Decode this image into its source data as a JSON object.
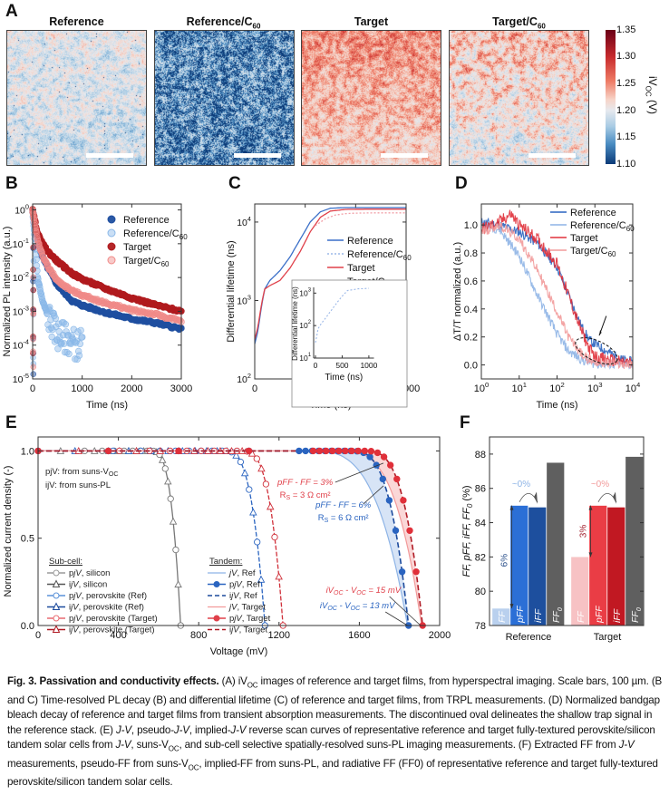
{
  "figure": {
    "panels": {
      "A": "A",
      "B": "B",
      "C": "C",
      "D": "D",
      "E": "E",
      "F": "F"
    },
    "panelA": {
      "images": [
        {
          "title": "Reference",
          "title_sub": ""
        },
        {
          "title": "Reference/C",
          "title_sub": "60"
        },
        {
          "title": "Target",
          "title_sub": ""
        },
        {
          "title": "Target/C",
          "title_sub": "60"
        }
      ],
      "colorbar": {
        "label": "iV",
        "label_sub": "OC",
        "label_unit": " (V)",
        "ticks": [
          "1.35",
          "1.30",
          "1.25",
          "1.20",
          "1.15",
          "1.10"
        ],
        "range": [
          1.1,
          1.35
        ]
      }
    },
    "caption": {
      "fig_label": "Fig. 3. Passivation and conductivity effects.",
      "text_A_pre": " (A) iV",
      "text_A_sub": "OC",
      "text_A_post": " images of reference and target films, from hyperspectral imaging. Scale bars, 100 µm. (B and C) Time-resolved PL decay (B) and differential lifetime (C) of reference and target films, from TRPL measurements. (D) Normalized bandgap bleach decay of reference and target films from transient absorption measurements. The discontinued oval delineates the shallow trap signal in the reference stack. (E) ",
      "text_E_jv": "J-V",
      "text_E_1": ", pseudo-",
      "text_E_pjv": "J-V",
      "text_E_2": ", implied-",
      "text_E_ijv": "J-V",
      "text_E_3": " reverse scan curves of representative reference and target fully-textured perovskite/silicon tandem solar cells from ",
      "text_E_jv2": "J-V",
      "text_E_4": ", suns-V",
      "text_E_sub": "OC",
      "text_E_5": ", and sub-cell selective spatially-resolved suns-PL imaging measurements. (F) Extracted FF from ",
      "text_F_jv": "J-V",
      "text_F_1": " measurements, pseudo-FF from suns-V",
      "text_F_sub": "OC",
      "text_F_2": ", implied-FF from suns-PL, and radiative FF (FF0) of representative reference and target fully-textured perovskite/silicon tandem solar cells."
    }
  },
  "chart_data": [
    {
      "id": "B",
      "type": "scatter",
      "title": "",
      "xlabel": "Time (ns)",
      "ylabel": "Normalized PL intensity (a.u.)",
      "xlim": [
        0,
        3000
      ],
      "ylim": [
        1e-05,
        1.5
      ],
      "yscale": "log",
      "xticks": [
        "0",
        "1000",
        "2000",
        "3000"
      ],
      "yticks": [
        "10^0",
        "10^-1",
        "10^-2",
        "10^-3",
        "10^-4",
        "10^-5"
      ],
      "legend_position": "top-right",
      "series": [
        {
          "name": "Reference",
          "color": "#1f4fa0",
          "x": [
            0,
            100,
            200,
            300,
            500,
            800,
            1000,
            1500,
            2000,
            2500,
            3000
          ],
          "y": [
            1.0,
            0.12,
            0.04,
            0.02,
            0.006,
            0.002,
            0.0015,
            0.0009,
            0.0006,
            0.00045,
            0.0003
          ]
        },
        {
          "name": "Reference/C60",
          "color": "#8ab8e8",
          "x": [
            0,
            50,
            100,
            200,
            300,
            400,
            500,
            700,
            900,
            1000
          ],
          "y": [
            0.9,
            0.1,
            0.01,
            0.002,
            0.0008,
            0.0004,
            0.0002,
            0.00015,
            0.0001,
            0.00012
          ]
        },
        {
          "name": "Target",
          "color": "#b01a1e",
          "x": [
            0,
            100,
            200,
            300,
            500,
            800,
            1000,
            1500,
            2000,
            2500,
            3000
          ],
          "y": [
            1.0,
            0.2,
            0.1,
            0.06,
            0.03,
            0.013,
            0.009,
            0.0045,
            0.0025,
            0.0015,
            0.001
          ]
        },
        {
          "name": "Target/C60",
          "color": "#f08a88",
          "x": [
            0,
            100,
            200,
            300,
            500,
            800,
            1000,
            1500,
            2000,
            2500,
            3000
          ],
          "y": [
            1.0,
            0.12,
            0.045,
            0.022,
            0.008,
            0.004,
            0.003,
            0.0017,
            0.0011,
            0.0008,
            0.0005
          ]
        }
      ]
    },
    {
      "id": "C",
      "type": "line",
      "title": "",
      "xlabel": "Time (ns)",
      "ylabel": "Differential lifetime (ns)",
      "xlim": [
        0,
        15000
      ],
      "ylim": [
        100,
        17000
      ],
      "yscale": "log",
      "xticks": [
        "0",
        "5000",
        "10000",
        "15000"
      ],
      "yticks": [
        "10^2",
        "10^3",
        "10^4"
      ],
      "legend_position": "top-right",
      "series": [
        {
          "name": "Reference",
          "color": "#3a6fc8",
          "style": "solid",
          "x": [
            0,
            300,
            700,
            1000,
            1500,
            2500,
            3500,
            4500,
            5500,
            6500,
            7500,
            9000,
            11000,
            15000
          ],
          "y": [
            280,
            400,
            900,
            1400,
            1800,
            2400,
            3600,
            6000,
            10000,
            13500,
            15000,
            15300,
            15300,
            15300
          ]
        },
        {
          "name": "Reference/C60",
          "color": "#9bb8e8",
          "style": "dotted",
          "x": [],
          "y": []
        },
        {
          "name": "Target",
          "color": "#e0414a",
          "style": "solid",
          "x": [
            0,
            300,
            700,
            1000,
            1500,
            2500,
            3500,
            4500,
            5500,
            6500,
            7500,
            9000,
            11000,
            15000
          ],
          "y": [
            320,
            450,
            950,
            1400,
            1550,
            1800,
            2600,
            4200,
            7500,
            11500,
            13800,
            14500,
            14600,
            14600
          ]
        },
        {
          "name": "Target/C60",
          "color": "#f2a0a8",
          "style": "dotted",
          "x": [
            6000,
            7000,
            8000,
            9000,
            10000,
            12000,
            15000
          ],
          "y": [
            9000,
            11000,
            12300,
            12800,
            13000,
            13100,
            13100
          ]
        }
      ],
      "inset": {
        "xlabel": "Time (ns)",
        "ylabel": "Differential lifetime (ns)",
        "xlim": [
          0,
          1000
        ],
        "ylim": [
          10,
          1500
        ],
        "yscale": "log",
        "xticks": [
          "0",
          "500",
          "1000"
        ],
        "yticks": [
          "10^1",
          "10^2",
          "10^3"
        ],
        "series": [
          {
            "name": "Reference/C60",
            "color": "#9bb8e8",
            "style": "dotted",
            "x": [
              0,
              50,
              100,
              200,
              300,
              400,
              500,
              600,
              800,
              1000
            ],
            "y": [
              30,
              80,
              110,
              180,
              300,
              500,
              800,
              1200,
              1350,
              1400
            ]
          }
        ]
      }
    },
    {
      "id": "D",
      "type": "line",
      "title": "",
      "xlabel": "Time (ns)",
      "ylabel": "ΔT/T normalized (a.u.)",
      "xlim": [
        1,
        10000
      ],
      "xscale": "log",
      "ylim": [
        -0.1,
        1.15
      ],
      "xticks": [
        "10^0",
        "10^1",
        "10^2",
        "10^3",
        "10^4"
      ],
      "yticks": [
        "0.0",
        "0.2",
        "0.4",
        "0.6",
        "0.8",
        "1.0"
      ],
      "legend_position": "top-right",
      "annotation": "dashed oval around shallow trap signal near 10^3 ns with arrow",
      "series": [
        {
          "name": "Reference",
          "color": "#2a64c0",
          "x": [
            1,
            3,
            10,
            30,
            100,
            200,
            400,
            700,
            1000,
            2000,
            5000,
            10000
          ],
          "y": [
            1.02,
            1.0,
            0.95,
            0.87,
            0.7,
            0.5,
            0.3,
            0.18,
            0.15,
            0.1,
            0.04,
            0.02
          ]
        },
        {
          "name": "Reference/C60",
          "color": "#8eb4e6",
          "x": [
            1,
            3,
            10,
            30,
            100,
            200,
            500,
            1000,
            10000
          ],
          "y": [
            1.0,
            0.97,
            0.78,
            0.5,
            0.22,
            0.1,
            0.03,
            0.01,
            0.0
          ]
        },
        {
          "name": "Target",
          "color": "#e0303a",
          "x": [
            1,
            3,
            6,
            10,
            30,
            100,
            200,
            400,
            700,
            1000,
            2000,
            5000,
            10000
          ],
          "y": [
            0.97,
            1.02,
            1.08,
            1.0,
            0.9,
            0.72,
            0.5,
            0.27,
            0.12,
            0.06,
            0.04,
            0.02,
            0.01
          ]
        },
        {
          "name": "Target/C60",
          "color": "#f29a9a",
          "x": [
            1,
            3,
            10,
            30,
            100,
            200,
            500,
            1000,
            10000
          ],
          "y": [
            0.95,
            1.0,
            0.9,
            0.68,
            0.38,
            0.2,
            0.06,
            0.02,
            0.0
          ]
        }
      ]
    },
    {
      "id": "E",
      "type": "line",
      "title": "",
      "xlabel": "Voltage (mV)",
      "ylabel": "Normalized current density (-)",
      "xlim": [
        0,
        2000
      ],
      "ylim": [
        0,
        1.08
      ],
      "xticks": [
        "0",
        "400",
        "800",
        "1200",
        "1600",
        "2000"
      ],
      "yticks": [
        "0.0",
        "0.5",
        "1.0"
      ],
      "notes": [
        "pjV: from suns-V",
        "ijV: from suns-PL"
      ],
      "notes_sub": "OC",
      "annotations": [
        {
          "text": "pFF - FF = 3%",
          "text2": "R",
          "text2_sub": "S",
          "text2_post": " = 3 Ω cm²",
          "color": "#e0404a"
        },
        {
          "text": "pFF - FF = 6%",
          "text2": "R",
          "text2_sub": "S",
          "text2_post": " = 6 Ω cm²",
          "color": "#2a64c0"
        },
        {
          "text": "iV",
          "sub": "OC",
          "post": " - V",
          "sub2": "OC",
          "post2": " = 15 mV",
          "color": "#e0404a"
        },
        {
          "text": "iV",
          "sub": "OC",
          "post": " - V",
          "sub2": "OC",
          "post2": " = 13 mV",
          "color": "#2a64c0"
        }
      ],
      "legend_subcell_title": "Sub-cell:",
      "legend_tandem_title": "Tandem:",
      "legend_subcell": [
        {
          "name": "pjV, silicon",
          "pre": "p",
          "it": "j",
          "it2": "V",
          "post": ", silicon",
          "color": "#9a9a9a",
          "marker": "circle-open"
        },
        {
          "name": "ijV, silicon",
          "pre": "i",
          "it": "j",
          "it2": "V",
          "post": ", silicon",
          "color": "#555555",
          "marker": "triangle-open"
        },
        {
          "name": "pjV, perovskite (Ref)",
          "pre": "p",
          "it": "j",
          "it2": "V",
          "post": ", perovskite (Ref)",
          "color": "#5a92d8",
          "marker": "circle-open"
        },
        {
          "name": "ijV, perovskite (Ref)",
          "pre": "i",
          "it": "j",
          "it2": "V",
          "post": ", perovskite (Ref)",
          "color": "#1c4a9c",
          "marker": "triangle-open"
        },
        {
          "name": "pjV, perovskite (Target)",
          "pre": "p",
          "it": "j",
          "it2": "V",
          "post": ", perovskite (Target)",
          "color": "#e86a70",
          "marker": "circle-open"
        },
        {
          "name": "ijV, perovskite (Target)",
          "pre": "i",
          "it": "j",
          "it2": "V",
          "post": ", perovskite (Target)",
          "color": "#b01a24",
          "marker": "triangle-open"
        }
      ],
      "legend_tandem": [
        {
          "name": "jV, Ref",
          "pre": "",
          "it": "jV",
          "post": ", Ref",
          "color": "#8eb4e6",
          "style": "solid"
        },
        {
          "name": "pjV, Ref",
          "pre": "p",
          "it": "jV",
          "post": ", Ref",
          "color": "#2a64c0",
          "style": "marker"
        },
        {
          "name": "ijV, Ref",
          "pre": "i",
          "it": "jV",
          "post": ", Ref",
          "color": "#1c4a9c",
          "style": "dashed"
        },
        {
          "name": "jV, Target",
          "pre": "",
          "it": "jV",
          "post": ", Target",
          "color": "#f29a9a",
          "style": "solid"
        },
        {
          "name": "pjV, Target",
          "pre": "p",
          "it": "jV",
          "post": ", Target",
          "color": "#e0404a",
          "style": "marker"
        },
        {
          "name": "ijV, Target",
          "pre": "i",
          "it": "jV",
          "post": ", Target",
          "color": "#b01a24",
          "style": "dashed"
        }
      ],
      "series": [
        {
          "name": "silicon",
          "voc": 710,
          "knee": 560,
          "color": "#777777"
        },
        {
          "name": "perovskite (Ref)",
          "voc": 1130,
          "knee": 920,
          "color": "#2a64c0"
        },
        {
          "name": "perovskite (Target)",
          "voc": 1220,
          "knee": 1010,
          "color": "#d0303a"
        },
        {
          "name": "tandem Ref jV",
          "voc": 1840,
          "knee": 1350,
          "color": "#8eb4e6"
        },
        {
          "name": "tandem Ref pjV/ijV",
          "voc": 1845,
          "knee": 1550,
          "color": "#2a64c0"
        },
        {
          "name": "tandem Target jV",
          "voc": 1910,
          "knee": 1500,
          "color": "#f29a9a"
        },
        {
          "name": "tandem Target pjV/ijV",
          "voc": 1915,
          "knee": 1620,
          "color": "#e0303a"
        }
      ]
    },
    {
      "id": "F",
      "type": "bar",
      "title": "",
      "xlabel": "",
      "ylabel": "FF, pFF, iFF, FF0 (%)",
      "ylim": [
        78,
        89
      ],
      "yticks": [
        "78",
        "80",
        "82",
        "84",
        "86",
        "88"
      ],
      "categories": [
        "Reference",
        "Target"
      ],
      "series": [
        {
          "name": "FF",
          "values": [
            79.0,
            82.0
          ],
          "colors": [
            "#b9d0ee",
            "#f7c2c4"
          ]
        },
        {
          "name": "pFF",
          "values": [
            85.0,
            85.0
          ],
          "colors": [
            "#2b6fd6",
            "#ea3d45"
          ]
        },
        {
          "name": "iFF",
          "values": [
            84.9,
            84.9
          ],
          "colors": [
            "#1d4f9e",
            "#c11822"
          ]
        },
        {
          "name": "FF0",
          "values": [
            87.5,
            87.85
          ],
          "colors": [
            "#5f5f5f",
            "#5f5f5f"
          ]
        }
      ],
      "bar_labels": [
        "FF",
        "pFF",
        "iFF",
        "FF0"
      ],
      "annotations": [
        {
          "category": "Reference",
          "text": "6%",
          "color": "#2a4f8a"
        },
        {
          "category": "Reference",
          "text": "~0%",
          "color": "#8eb4e6"
        },
        {
          "category": "Target",
          "text": "3%",
          "color": "#a01a28"
        },
        {
          "category": "Target",
          "text": "~0%",
          "color": "#f29a9a"
        }
      ]
    }
  ]
}
